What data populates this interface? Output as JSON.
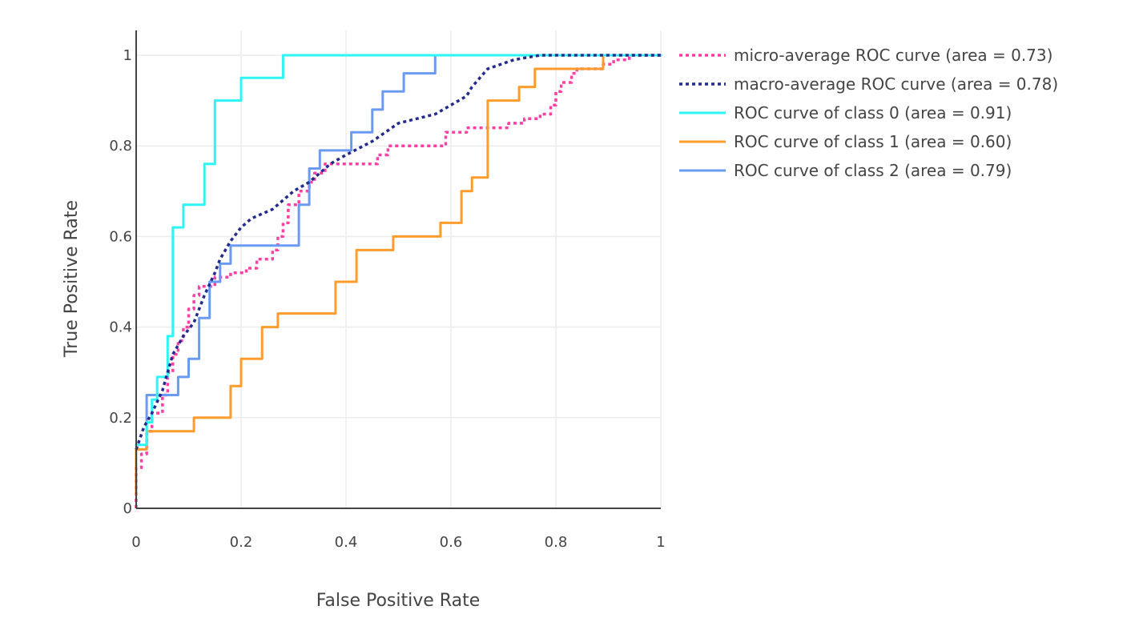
{
  "chart_data": {
    "type": "line",
    "title": "",
    "xlabel": "False Positive Rate",
    "ylabel": "True Positive Rate",
    "xlim": [
      0,
      1
    ],
    "ylim": [
      0,
      1.05
    ],
    "x_ticks": [
      0,
      0.2,
      0.4,
      0.6,
      0.8,
      1
    ],
    "x_tick_labels": [
      "0",
      "0.2",
      "0.4",
      "0.6",
      "0.8",
      "1"
    ],
    "y_ticks": [
      0,
      0.2,
      0.4,
      0.6,
      0.8,
      1
    ],
    "y_tick_labels": [
      "0",
      "0.2",
      "0.4",
      "0.6",
      "0.8",
      "1"
    ],
    "grid": true,
    "legend_position": "top-right, outside plot",
    "series": [
      {
        "name": "micro-average ROC curve (area = 0.73)",
        "color": "#ff3fa4",
        "dash": "dot",
        "x": [
          0,
          0,
          0.01,
          0.01,
          0.02,
          0.02,
          0.03,
          0.03,
          0.05,
          0.05,
          0.06,
          0.06,
          0.07,
          0.07,
          0.08,
          0.08,
          0.09,
          0.09,
          0.1,
          0.1,
          0.11,
          0.11,
          0.12,
          0.12,
          0.15,
          0.15,
          0.18,
          0.18,
          0.21,
          0.21,
          0.23,
          0.23,
          0.26,
          0.26,
          0.27,
          0.27,
          0.28,
          0.28,
          0.29,
          0.29,
          0.31,
          0.31,
          0.33,
          0.33,
          0.34,
          0.34,
          0.36,
          0.36,
          0.39,
          0.39,
          0.46,
          0.46,
          0.48,
          0.48,
          0.49,
          0.49,
          0.59,
          0.59,
          0.6,
          0.6,
          0.63,
          0.63,
          0.71,
          0.71,
          0.74,
          0.74,
          0.77,
          0.77,
          0.79,
          0.79,
          0.8,
          0.8,
          0.81,
          0.81,
          0.83,
          0.83,
          0.84,
          0.84,
          0.86,
          0.86,
          0.89,
          0.89,
          0.91,
          0.91,
          0.94,
          0.94,
          1
        ],
        "y": [
          0,
          0.09,
          0.09,
          0.12,
          0.12,
          0.17,
          0.17,
          0.21,
          0.21,
          0.25,
          0.25,
          0.3,
          0.3,
          0.34,
          0.34,
          0.37,
          0.37,
          0.4,
          0.4,
          0.44,
          0.44,
          0.47,
          0.47,
          0.49,
          0.49,
          0.51,
          0.51,
          0.52,
          0.52,
          0.53,
          0.53,
          0.55,
          0.55,
          0.57,
          0.57,
          0.6,
          0.6,
          0.63,
          0.63,
          0.67,
          0.67,
          0.7,
          0.7,
          0.72,
          0.72,
          0.74,
          0.74,
          0.76,
          0.76,
          0.76,
          0.76,
          0.78,
          0.78,
          0.8,
          0.8,
          0.8,
          0.8,
          0.83,
          0.83,
          0.83,
          0.83,
          0.84,
          0.84,
          0.85,
          0.85,
          0.86,
          0.86,
          0.87,
          0.87,
          0.89,
          0.89,
          0.92,
          0.92,
          0.94,
          0.94,
          0.96,
          0.96,
          0.97,
          0.97,
          0.97,
          0.97,
          0.98,
          0.98,
          0.99,
          0.99,
          1.0,
          1.0
        ]
      },
      {
        "name": "macro-average ROC curve (area = 0.78)",
        "color": "#232b8c",
        "dash": "dot",
        "x": [
          0,
          0.015,
          0.03,
          0.05,
          0.07,
          0.09,
          0.11,
          0.13,
          0.15,
          0.16,
          0.18,
          0.2,
          0.22,
          0.26,
          0.3,
          0.33,
          0.37,
          0.4,
          0.45,
          0.5,
          0.57,
          0.6,
          0.63,
          0.64,
          0.67,
          0.72,
          0.77,
          0.8,
          0.86,
          0.89,
          1
        ],
        "y": [
          0.13,
          0.18,
          0.21,
          0.26,
          0.34,
          0.38,
          0.41,
          0.47,
          0.52,
          0.55,
          0.59,
          0.62,
          0.64,
          0.66,
          0.7,
          0.72,
          0.76,
          0.78,
          0.81,
          0.85,
          0.87,
          0.89,
          0.91,
          0.93,
          0.97,
          0.99,
          1.0,
          1.0,
          1.0,
          1.0,
          1.0
        ]
      },
      {
        "name": "ROC curve of class 0 (area = 0.91)",
        "color": "#2df5f5",
        "dash": "solid",
        "x": [
          0,
          0,
          0.02,
          0.02,
          0.03,
          0.03,
          0.04,
          0.04,
          0.06,
          0.06,
          0.07,
          0.07,
          0.09,
          0.09,
          0.13,
          0.13,
          0.15,
          0.15,
          0.2,
          0.2,
          0.26,
          0.26,
          0.28,
          0.28,
          1
        ],
        "y": [
          0.14,
          0.14,
          0.14,
          0.19,
          0.19,
          0.24,
          0.24,
          0.29,
          0.29,
          0.38,
          0.38,
          0.62,
          0.62,
          0.67,
          0.67,
          0.76,
          0.76,
          0.9,
          0.9,
          0.95,
          0.95,
          0.95,
          0.95,
          1.0,
          1.0
        ]
      },
      {
        "name": "ROC curve of class 1 (area = 0.60)",
        "color": "#ff9c2c",
        "dash": "solid",
        "x": [
          0,
          0,
          0.02,
          0.02,
          0.11,
          0.11,
          0.18,
          0.18,
          0.2,
          0.2,
          0.24,
          0.24,
          0.27,
          0.27,
          0.38,
          0.38,
          0.42,
          0.42,
          0.49,
          0.49,
          0.58,
          0.58,
          0.62,
          0.62,
          0.64,
          0.64,
          0.67,
          0.67,
          0.73,
          0.73,
          0.76,
          0.76,
          0.88,
          0.88,
          0.89,
          0.89,
          1
        ],
        "y": [
          0.03,
          0.13,
          0.13,
          0.17,
          0.17,
          0.2,
          0.2,
          0.27,
          0.27,
          0.33,
          0.33,
          0.4,
          0.4,
          0.43,
          0.43,
          0.5,
          0.5,
          0.57,
          0.57,
          0.6,
          0.6,
          0.63,
          0.63,
          0.7,
          0.7,
          0.73,
          0.73,
          0.9,
          0.9,
          0.93,
          0.93,
          0.97,
          0.97,
          0.97,
          0.97,
          1.0,
          1.0
        ]
      },
      {
        "name": "ROC curve of class 2 (area = 0.79)",
        "color": "#6b9af3",
        "dash": "solid",
        "x": [
          0,
          0,
          0.02,
          0.02,
          0.08,
          0.08,
          0.1,
          0.1,
          0.12,
          0.12,
          0.14,
          0.14,
          0.16,
          0.16,
          0.18,
          0.18,
          0.31,
          0.31,
          0.33,
          0.33,
          0.35,
          0.35,
          0.41,
          0.41,
          0.45,
          0.45,
          0.47,
          0.47,
          0.51,
          0.51,
          0.57,
          0.57,
          1
        ],
        "y": [
          0.08,
          0.13,
          0.13,
          0.25,
          0.25,
          0.29,
          0.29,
          0.33,
          0.33,
          0.42,
          0.42,
          0.5,
          0.5,
          0.54,
          0.54,
          0.58,
          0.58,
          0.67,
          0.67,
          0.75,
          0.75,
          0.79,
          0.79,
          0.83,
          0.83,
          0.88,
          0.88,
          0.92,
          0.92,
          0.96,
          0.96,
          1.0,
          1.0
        ]
      }
    ]
  }
}
